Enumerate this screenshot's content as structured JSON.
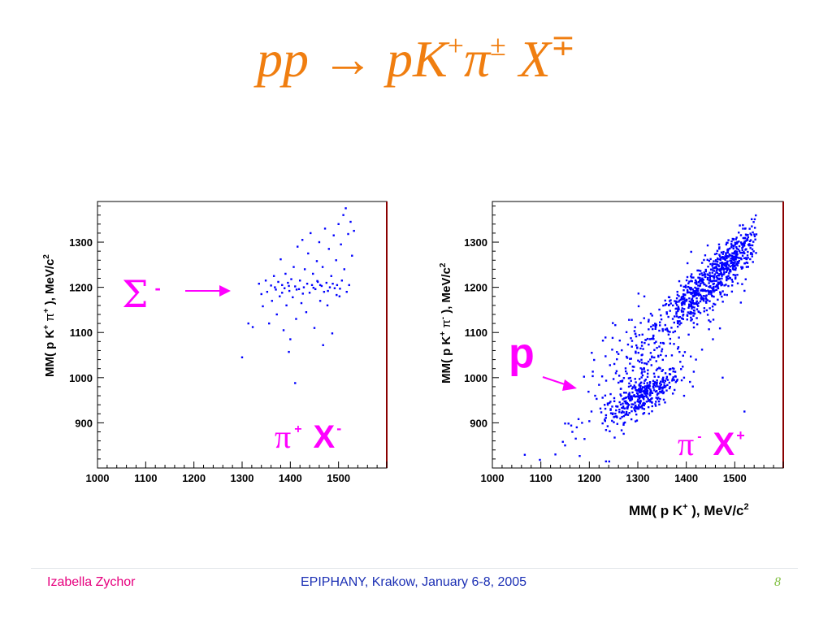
{
  "slide": {
    "title_base": "pp → pK",
    "title_sup1": "+",
    "title_pi": "π",
    "title_sup2": "±",
    "title_x": " X",
    "title_sup3": "∓"
  },
  "footer": {
    "author": "Izabella Zychor",
    "event": "EPIPHANY, Krakow, January 6-8, 2005",
    "page": "8"
  },
  "colors": {
    "title": "#f07e10",
    "points": "#0000ff",
    "annotation": "#ff00ff",
    "frame_right": "#8b0000",
    "footer_author": "#e6007e",
    "footer_event": "#1b2fb4",
    "footer_page": "#7fbf3f"
  },
  "chart_data": [
    {
      "type": "scatter",
      "title": "",
      "ylabel_parts": {
        "prefix": "MM( p K",
        "sup1": "+",
        "pi": " π",
        "sup2": "+",
        "suffix": " ), MeV/c",
        "sup3": "2"
      },
      "xlabel": "",
      "xlim": [
        1000,
        1600
      ],
      "ylim": [
        800,
        1390
      ],
      "xticks": [
        1000,
        1100,
        1200,
        1300,
        1400,
        1500
      ],
      "yticks": [
        900,
        1000,
        1100,
        1200,
        1300
      ],
      "annotations": [
        {
          "id": "sigma",
          "text": "Σ",
          "sup": "-",
          "arrow_to": [
            1290,
            1200
          ]
        },
        {
          "id": "channel",
          "pi": "π",
          "pi_sup": "+",
          "x": "X",
          "x_sup": "-"
        }
      ],
      "points": [
        {
          "x": 1300,
          "y": 1045
        },
        {
          "x": 1410,
          "y": 988
        },
        {
          "x": 1397,
          "y": 1057
        },
        {
          "x": 1468,
          "y": 1072
        },
        {
          "x": 1313,
          "y": 1120
        },
        {
          "x": 1322,
          "y": 1112
        },
        {
          "x": 1335,
          "y": 1208
        },
        {
          "x": 1340,
          "y": 1185
        },
        {
          "x": 1343,
          "y": 1158
        },
        {
          "x": 1349,
          "y": 1215
        },
        {
          "x": 1352,
          "y": 1190
        },
        {
          "x": 1356,
          "y": 1120
        },
        {
          "x": 1360,
          "y": 1204
        },
        {
          "x": 1362,
          "y": 1170
        },
        {
          "x": 1366,
          "y": 1225
        },
        {
          "x": 1370,
          "y": 1195
        },
        {
          "x": 1372,
          "y": 1140
        },
        {
          "x": 1375,
          "y": 1212
        },
        {
          "x": 1378,
          "y": 1180
        },
        {
          "x": 1380,
          "y": 1262
        },
        {
          "x": 1383,
          "y": 1205
        },
        {
          "x": 1386,
          "y": 1105
        },
        {
          "x": 1388,
          "y": 1198
        },
        {
          "x": 1390,
          "y": 1230
        },
        {
          "x": 1392,
          "y": 1160
        },
        {
          "x": 1395,
          "y": 1210
        },
        {
          "x": 1398,
          "y": 1192
        },
        {
          "x": 1400,
          "y": 1085
        },
        {
          "x": 1402,
          "y": 1218
        },
        {
          "x": 1405,
          "y": 1178
        },
        {
          "x": 1407,
          "y": 1245
        },
        {
          "x": 1410,
          "y": 1202
        },
        {
          "x": 1412,
          "y": 1130
        },
        {
          "x": 1415,
          "y": 1290
        },
        {
          "x": 1418,
          "y": 1196
        },
        {
          "x": 1420,
          "y": 1215
        },
        {
          "x": 1423,
          "y": 1165
        },
        {
          "x": 1425,
          "y": 1305
        },
        {
          "x": 1428,
          "y": 1200
        },
        {
          "x": 1430,
          "y": 1240
        },
        {
          "x": 1433,
          "y": 1145
        },
        {
          "x": 1435,
          "y": 1208
        },
        {
          "x": 1437,
          "y": 1275
        },
        {
          "x": 1440,
          "y": 1188
        },
        {
          "x": 1442,
          "y": 1320
        },
        {
          "x": 1445,
          "y": 1205
        },
        {
          "x": 1447,
          "y": 1230
        },
        {
          "x": 1450,
          "y": 1110
        },
        {
          "x": 1452,
          "y": 1196
        },
        {
          "x": 1455,
          "y": 1258
        },
        {
          "x": 1457,
          "y": 1212
        },
        {
          "x": 1460,
          "y": 1300
        },
        {
          "x": 1462,
          "y": 1170
        },
        {
          "x": 1465,
          "y": 1203
        },
        {
          "x": 1467,
          "y": 1245
        },
        {
          "x": 1470,
          "y": 1190
        },
        {
          "x": 1472,
          "y": 1330
        },
        {
          "x": 1475,
          "y": 1210
        },
        {
          "x": 1477,
          "y": 1160
        },
        {
          "x": 1480,
          "y": 1285
        },
        {
          "x": 1482,
          "y": 1200
        },
        {
          "x": 1485,
          "y": 1225
        },
        {
          "x": 1487,
          "y": 1098
        },
        {
          "x": 1490,
          "y": 1315
        },
        {
          "x": 1492,
          "y": 1198
        },
        {
          "x": 1495,
          "y": 1260
        },
        {
          "x": 1497,
          "y": 1205
        },
        {
          "x": 1500,
          "y": 1340
        },
        {
          "x": 1502,
          "y": 1180
        },
        {
          "x": 1505,
          "y": 1295
        },
        {
          "x": 1507,
          "y": 1215
        },
        {
          "x": 1510,
          "y": 1360
        },
        {
          "x": 1512,
          "y": 1240
        },
        {
          "x": 1515,
          "y": 1375
        },
        {
          "x": 1517,
          "y": 1190
        },
        {
          "x": 1520,
          "y": 1318
        },
        {
          "x": 1522,
          "y": 1205
        },
        {
          "x": 1525,
          "y": 1345
        },
        {
          "x": 1528,
          "y": 1270
        },
        {
          "x": 1532,
          "y": 1325
        },
        {
          "x": 1383,
          "y": 1188
        },
        {
          "x": 1397,
          "y": 1203
        },
        {
          "x": 1413,
          "y": 1195
        },
        {
          "x": 1448,
          "y": 1199
        },
        {
          "x": 1462,
          "y": 1205
        },
        {
          "x": 1478,
          "y": 1192
        },
        {
          "x": 1488,
          "y": 1208
        },
        {
          "x": 1503,
          "y": 1197
        },
        {
          "x": 1368,
          "y": 1200
        },
        {
          "x": 1426,
          "y": 1186
        },
        {
          "x": 1456,
          "y": 1214
        },
        {
          "x": 1496,
          "y": 1183
        }
      ]
    },
    {
      "type": "scatter",
      "title": "",
      "ylabel_parts": {
        "prefix": "MM( p K",
        "sup1": "+",
        "pi": " π",
        "sup2": "-",
        "suffix": " ), MeV/c",
        "sup3": "2"
      },
      "xlabel_parts": {
        "prefix": "MM( p K",
        "sup1": "+",
        "suffix": " ), MeV/c",
        "sup2": "2"
      },
      "xlim": [
        1000,
        1600
      ],
      "ylim": [
        800,
        1390
      ],
      "xticks": [
        1000,
        1100,
        1200,
        1300,
        1400,
        1500
      ],
      "yticks": [
        900,
        1000,
        1100,
        1200,
        1300
      ],
      "annotations": [
        {
          "id": "proton",
          "text": "p",
          "arrow_to": [
            1180,
            975
          ]
        },
        {
          "id": "channel",
          "pi": "π",
          "pi_sup": "-",
          "x": "X",
          "x_sup": "+"
        }
      ],
      "clusters": [
        {
          "center": [
            1310,
            960
          ],
          "spread": [
            38,
            28
          ],
          "count": 330
        },
        {
          "center": [
            1420,
            1180
          ],
          "spread": [
            40,
            40
          ],
          "count": 320
        },
        {
          "center": [
            1490,
            1260
          ],
          "spread": [
            32,
            38
          ],
          "count": 380
        },
        {
          "center": [
            1330,
            1060
          ],
          "spread": [
            70,
            85
          ],
          "count": 260
        }
      ],
      "outliers": [
        {
          "x": 1150,
          "y": 850
        },
        {
          "x": 1130,
          "y": 830
        },
        {
          "x": 1165,
          "y": 880
        },
        {
          "x": 1185,
          "y": 900
        },
        {
          "x": 1172,
          "y": 865
        },
        {
          "x": 1205,
          "y": 1055
        },
        {
          "x": 1248,
          "y": 1088
        },
        {
          "x": 1282,
          "y": 1128
        },
        {
          "x": 1228,
          "y": 1082
        },
        {
          "x": 1362,
          "y": 995
        },
        {
          "x": 1420,
          "y": 1040
        },
        {
          "x": 1455,
          "y": 1085
        },
        {
          "x": 1475,
          "y": 1000
        },
        {
          "x": 1520,
          "y": 925
        },
        {
          "x": 1098,
          "y": 818
        },
        {
          "x": 1212,
          "y": 960
        }
      ]
    }
  ]
}
